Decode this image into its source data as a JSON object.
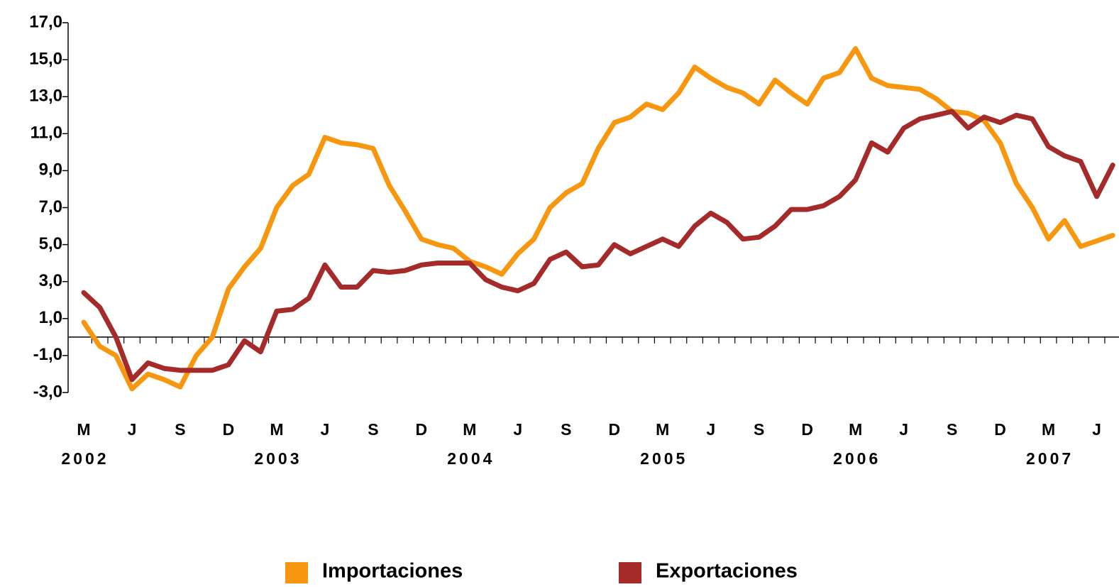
{
  "chart_data": {
    "type": "line",
    "categories": [
      "M",
      null,
      null,
      "J",
      null,
      null,
      "S",
      null,
      null,
      "D",
      null,
      null,
      "M",
      null,
      null,
      "J",
      null,
      null,
      "S",
      null,
      null,
      "D",
      null,
      null,
      "M",
      null,
      null,
      "J",
      null,
      null,
      "S",
      null,
      null,
      "D",
      null,
      null,
      "M",
      null,
      null,
      "J",
      null,
      null,
      "S",
      null,
      null,
      "D",
      null,
      null,
      "M",
      null,
      null,
      "J",
      null,
      null,
      "S",
      null,
      null,
      "D",
      null,
      null,
      "M",
      null,
      null,
      "J",
      null
    ],
    "year_labels": [
      "2002",
      "2003",
      "2004",
      "2005",
      "2006",
      "2007"
    ],
    "series": [
      {
        "name": "Importaciones",
        "color": "#f7970f",
        "values": [
          0.8,
          -0.5,
          -1.0,
          -2.8,
          -2.0,
          -2.3,
          -2.7,
          -1.0,
          0.0,
          2.6,
          3.8,
          4.8,
          7.0,
          8.2,
          8.8,
          10.8,
          10.5,
          10.4,
          10.2,
          8.2,
          6.8,
          5.3,
          5.0,
          4.8,
          4.1,
          3.8,
          3.4,
          4.5,
          5.3,
          7.0,
          7.8,
          8.3,
          10.2,
          11.6,
          11.9,
          12.6,
          12.3,
          13.2,
          14.6,
          14.0,
          13.5,
          13.2,
          12.6,
          13.9,
          13.2,
          12.6,
          14.0,
          14.3,
          15.6,
          14.0,
          13.6,
          13.5,
          13.4,
          12.9,
          12.2,
          12.1,
          11.7,
          10.5,
          8.3,
          7.0,
          5.3,
          6.3,
          4.9,
          5.2,
          5.5
        ]
      },
      {
        "name": "Exportaciones",
        "color": "#a52a2a",
        "values": [
          2.4,
          1.6,
          0.0,
          -2.3,
          -1.4,
          -1.7,
          -1.8,
          -1.8,
          -1.8,
          -1.5,
          -0.2,
          -0.8,
          1.4,
          1.5,
          2.1,
          3.9,
          2.7,
          2.7,
          3.6,
          3.5,
          3.6,
          3.9,
          4.0,
          4.0,
          4.0,
          3.1,
          2.7,
          2.5,
          2.9,
          4.2,
          4.6,
          3.8,
          3.9,
          5.0,
          4.5,
          4.9,
          5.3,
          4.9,
          6.0,
          6.7,
          6.2,
          5.3,
          5.4,
          6.0,
          6.9,
          6.9,
          7.1,
          7.6,
          8.5,
          10.5,
          10.0,
          11.3,
          11.8,
          12.0,
          12.2,
          11.3,
          11.9,
          11.6,
          12.0,
          11.8,
          10.3,
          9.8,
          9.5,
          7.6,
          9.3
        ]
      }
    ],
    "ylim": [
      -3,
      17
    ],
    "yticks": [
      {
        "value": -3,
        "label": "-3,0"
      },
      {
        "value": -1,
        "label": "-1,0"
      },
      {
        "value": 1,
        "label": "1,0"
      },
      {
        "value": 3,
        "label": "3,0"
      },
      {
        "value": 5,
        "label": "5,0"
      },
      {
        "value": 7,
        "label": "7,0"
      },
      {
        "value": 9,
        "label": "9,0"
      },
      {
        "value": 11,
        "label": "11,0"
      },
      {
        "value": 13,
        "label": "13,0"
      },
      {
        "value": 15,
        "label": "15,0"
      },
      {
        "value": 17,
        "label": "17,0"
      }
    ],
    "legend": "bottom"
  }
}
